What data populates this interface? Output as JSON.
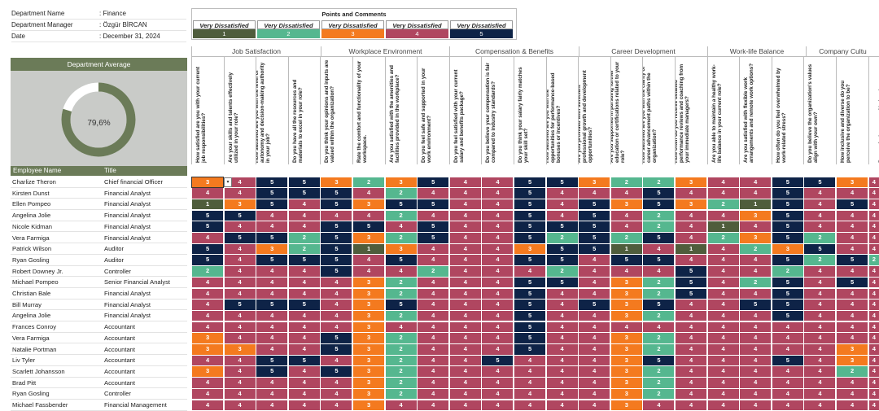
{
  "info": [
    {
      "label": "Department Name",
      "value": ": Finance"
    },
    {
      "label": "Department Manager",
      "value": ": Özgür BİRCAN"
    },
    {
      "label": "Date",
      "value": ": December 31, 2024"
    }
  ],
  "average": {
    "title": "Department Average",
    "value_text": "79,6%",
    "value": 0.796
  },
  "legend": {
    "title": "Points and Comments",
    "items": [
      {
        "label": "Very Dissatisfied",
        "score": "1",
        "color": "#4f5d3c"
      },
      {
        "label": "Very Dissatisfied",
        "score": "2",
        "color": "#55b78f"
      },
      {
        "label": "Very Dissatisfied",
        "score": "3",
        "color": "#f47a1f"
      },
      {
        "label": "Very Dissatisfied",
        "score": "4",
        "color": "#b04660"
      },
      {
        "label": "Very Dissatisfied",
        "score": "5",
        "color": "#0e2347"
      }
    ]
  },
  "categories": [
    "Job Satisfaction",
    "Workplace Environment",
    "Compensation & Benefits",
    "Career Development",
    "Work-life Balance",
    "Company Cultu"
  ],
  "questions": [
    "How satisfied are you with your current job responsibilities?",
    "Are your skills and talents effectively utilized in your role?",
    "How satisfied are you with the level of autonomy and decision-making authority in your job?",
    "Do you have all the resources and materials to excel in your role?",
    "Do you think your opinions and inputs are valued within the organization?",
    "Rate the comfort and functionality of your workspace.",
    "Are you satisfied with the amenities and facilities provided in the workplace?",
    "Do you feel safe and supported in your work environment?",
    "Do you feel satisfied with your current salary and benefits package?",
    "Do you believe your compensation is fair compared to industry standards?",
    "Do you think your salary fairly matches your skill set?",
    "How satisfied are you with the opportunities for performance-based bonuses or incentives?",
    "Are you provided with sufficient professional growth and development opportunities?",
    "Are you supported in pursuing further education or certifications related to your role?",
    "How satisfied are you with the clarity of career advancement paths within the organization?",
    "How often do you receive detailed performance reviews and coaching from your immediate managers?",
    "Are you able to maintain a healthy work-life balance in your current role?",
    "Are you satisfied with flexible work arrangements and remote work options?",
    "How often do you feel overwhelmed by work-related stress?",
    "Do you believe the organization's values align with your own?",
    "How inclusive and diverse do you perceive the organization to be?",
    "Do you feel a sense of belonging"
  ],
  "table": {
    "col_name": "Employee Name",
    "col_title": "Title"
  },
  "employees": [
    {
      "name": "Charlize Theron",
      "title": "Chief financial Officer",
      "scores": [
        3,
        4,
        5,
        5,
        3,
        2,
        3,
        5,
        4,
        4,
        5,
        5,
        3,
        2,
        2,
        3,
        4,
        4,
        5,
        5,
        3,
        4
      ]
    },
    {
      "name": "Kirsten Dunst",
      "title": "Financial Analyst",
      "scores": [
        4,
        4,
        5,
        5,
        5,
        4,
        2,
        4,
        4,
        4,
        5,
        4,
        4,
        4,
        5,
        4,
        4,
        4,
        5,
        4,
        4,
        4
      ]
    },
    {
      "name": "Ellen Pompeo",
      "title": "Financial Analyst",
      "scores": [
        1,
        3,
        5,
        4,
        5,
        3,
        5,
        5,
        4,
        4,
        5,
        4,
        5,
        3,
        5,
        3,
        2,
        1,
        5,
        4,
        5,
        4
      ]
    },
    {
      "name": "Angelina Jolie",
      "title": "Financial Analyst",
      "scores": [
        5,
        5,
        4,
        4,
        4,
        4,
        2,
        4,
        4,
        4,
        5,
        4,
        5,
        4,
        2,
        4,
        4,
        3,
        5,
        4,
        4,
        4
      ]
    },
    {
      "name": "Nicole Kidman",
      "title": "Financial Analyst",
      "scores": [
        5,
        4,
        4,
        4,
        5,
        5,
        4,
        5,
        4,
        4,
        5,
        5,
        5,
        4,
        2,
        4,
        1,
        4,
        5,
        4,
        4,
        4
      ]
    },
    {
      "name": "Vera Farmiga",
      "title": "Financial Analyst",
      "scores": [
        4,
        5,
        5,
        2,
        5,
        3,
        2,
        5,
        4,
        4,
        5,
        2,
        5,
        2,
        5,
        4,
        2,
        3,
        5,
        2,
        4,
        4
      ]
    },
    {
      "name": "Patrick Wilson",
      "title": "Auditor",
      "scores": [
        5,
        4,
        3,
        2,
        5,
        1,
        3,
        4,
        4,
        4,
        3,
        5,
        5,
        1,
        4,
        1,
        4,
        2,
        3,
        5,
        4,
        4
      ]
    },
    {
      "name": "Ryan Gosling",
      "title": "Auditor",
      "scores": [
        5,
        4,
        5,
        5,
        5,
        4,
        5,
        4,
        4,
        4,
        5,
        5,
        4,
        5,
        5,
        4,
        4,
        4,
        5,
        2,
        5,
        2
      ]
    },
    {
      "name": "Robert Downey Jr.",
      "title": "Controller",
      "scores": [
        2,
        4,
        4,
        4,
        5,
        4,
        4,
        2,
        4,
        4,
        4,
        2,
        4,
        4,
        4,
        5,
        4,
        4,
        2,
        4,
        4,
        4
      ]
    },
    {
      "name": "Michael Pompeo",
      "title": "Senior Financial Analyst",
      "scores": [
        4,
        4,
        4,
        4,
        4,
        3,
        2,
        4,
        4,
        4,
        5,
        5,
        4,
        3,
        2,
        5,
        4,
        2,
        5,
        4,
        5,
        4
      ]
    },
    {
      "name": "Christian Bale",
      "title": "Financial Analyst",
      "scores": [
        4,
        4,
        4,
        4,
        4,
        3,
        2,
        4,
        4,
        4,
        5,
        4,
        4,
        3,
        2,
        5,
        4,
        4,
        5,
        4,
        4,
        4
      ]
    },
    {
      "name": "Bill Murray",
      "title": "Financial Analyst",
      "scores": [
        4,
        5,
        5,
        5,
        4,
        3,
        5,
        4,
        4,
        4,
        5,
        4,
        5,
        3,
        5,
        4,
        4,
        5,
        5,
        4,
        4,
        4
      ]
    },
    {
      "name": "Angelina Jolie",
      "title": "Financial Analyst",
      "scores": [
        4,
        4,
        4,
        4,
        4,
        3,
        2,
        4,
        4,
        4,
        5,
        4,
        4,
        3,
        2,
        4,
        4,
        4,
        5,
        4,
        4,
        4
      ]
    },
    {
      "name": "Frances Conroy",
      "title": "Accountant",
      "scores": [
        4,
        4,
        4,
        4,
        4,
        3,
        4,
        4,
        4,
        4,
        5,
        4,
        4,
        4,
        4,
        4,
        4,
        4,
        4,
        4,
        4,
        4
      ]
    },
    {
      "name": "Vera Farmiga",
      "title": "Accountant",
      "scores": [
        3,
        4,
        4,
        4,
        5,
        3,
        2,
        4,
        4,
        4,
        5,
        4,
        4,
        3,
        2,
        4,
        4,
        4,
        4,
        4,
        4,
        4
      ]
    },
    {
      "name": "Natalie Portman",
      "title": "Accountant",
      "scores": [
        3,
        3,
        4,
        4,
        5,
        3,
        2,
        4,
        4,
        4,
        5,
        4,
        4,
        3,
        2,
        4,
        4,
        4,
        4,
        4,
        3,
        4
      ]
    },
    {
      "name": "Liv Tyler",
      "title": "Accountant",
      "scores": [
        4,
        4,
        5,
        5,
        4,
        3,
        2,
        4,
        4,
        5,
        4,
        4,
        4,
        3,
        5,
        4,
        4,
        4,
        5,
        4,
        3,
        4
      ]
    },
    {
      "name": "Scarlett Johansson",
      "title": "Accountant",
      "scores": [
        3,
        4,
        5,
        4,
        5,
        3,
        2,
        4,
        4,
        4,
        4,
        4,
        4,
        3,
        2,
        4,
        4,
        4,
        4,
        4,
        2,
        4
      ]
    },
    {
      "name": "Brad Pitt",
      "title": "Accountant",
      "scores": [
        4,
        4,
        4,
        4,
        4,
        3,
        2,
        4,
        4,
        4,
        4,
        4,
        4,
        3,
        2,
        4,
        4,
        4,
        4,
        4,
        4,
        4
      ]
    },
    {
      "name": "Ryan Gosling",
      "title": "Controller",
      "scores": [
        4,
        4,
        4,
        4,
        4,
        3,
        2,
        4,
        4,
        4,
        4,
        4,
        4,
        3,
        2,
        4,
        4,
        4,
        4,
        4,
        4,
        4
      ]
    },
    {
      "name": "Michael Fassbender",
      "title": "Financial Management",
      "scores": [
        4,
        4,
        4,
        4,
        4,
        3,
        4,
        4,
        4,
        4,
        4,
        4,
        4,
        3,
        4,
        4,
        4,
        4,
        4,
        4,
        4,
        4
      ]
    }
  ]
}
